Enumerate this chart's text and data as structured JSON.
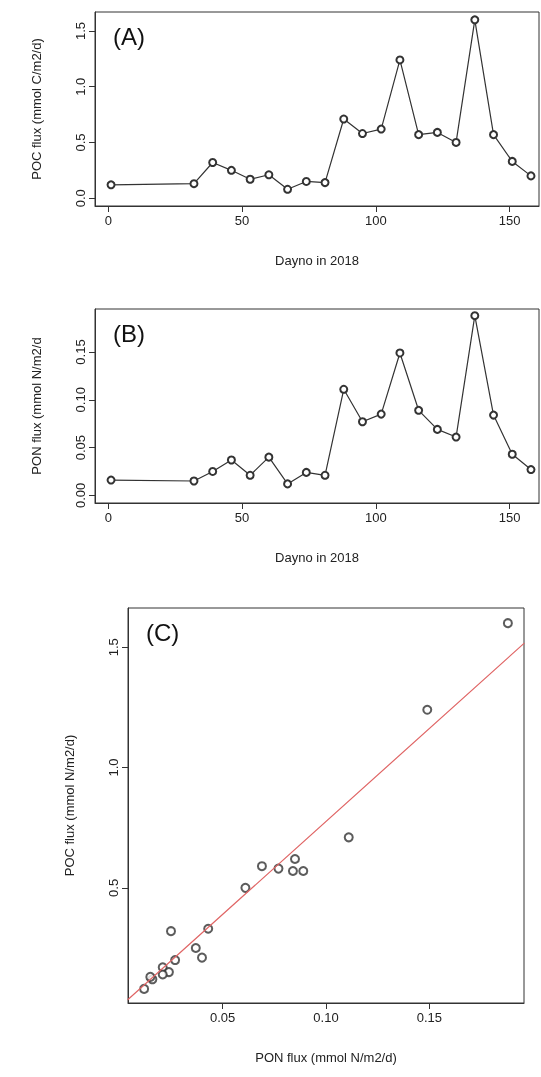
{
  "chart_data": [
    {
      "type": "line",
      "xlabel": "Dayno in 2018",
      "ylabel": "POC flux (mmol C/m2/d)",
      "annotations": [
        "(A)"
      ],
      "marker": "circle",
      "line_style": "solid",
      "grid": false,
      "x": [
        1,
        32,
        39,
        46,
        53,
        60,
        67,
        74,
        81,
        88,
        95,
        102,
        109,
        116,
        123,
        130,
        137,
        144,
        151,
        158
      ],
      "series": [
        {
          "color": "#333333",
          "values": [
            0.12,
            0.13,
            0.32,
            0.25,
            0.17,
            0.21,
            0.08,
            0.15,
            0.14,
            0.71,
            0.58,
            0.62,
            1.24,
            0.57,
            0.59,
            0.5,
            1.6,
            0.57,
            0.33,
            0.2
          ]
        }
      ],
      "xlim": [
        -5,
        161
      ],
      "xticks": [
        0,
        50,
        100,
        150
      ],
      "ylim": [
        -0.07,
        1.67
      ],
      "yticks": [
        {
          "value": 0,
          "label": "0.0"
        },
        0.5,
        {
          "value": 1,
          "label": "1.0"
        },
        1.5
      ]
    },
    {
      "type": "line",
      "xlabel": "Dayno in 2018",
      "ylabel": "PON flux (mmol N/m2/d",
      "annotations": [
        "(B)"
      ],
      "marker": "circle",
      "line_style": "solid",
      "grid": false,
      "x": [
        1,
        32,
        39,
        46,
        53,
        60,
        67,
        74,
        81,
        88,
        95,
        102,
        109,
        116,
        123,
        130,
        137,
        144,
        151,
        158
      ],
      "series": [
        {
          "color": "#333333",
          "values": [
            0.016,
            0.015,
            0.025,
            0.037,
            0.021,
            0.04,
            0.012,
            0.024,
            0.021,
            0.111,
            0.077,
            0.085,
            0.149,
            0.089,
            0.069,
            0.061,
            0.188,
            0.084,
            0.043,
            0.027
          ]
        }
      ],
      "xlim": [
        -5,
        161
      ],
      "xticks": [
        0,
        50,
        100,
        150
      ],
      "ylim": [
        -0.008,
        0.195
      ],
      "yticks": [
        {
          "value": 0,
          "label": "0.00"
        },
        0.05,
        {
          "value": 0.1,
          "label": "0.10"
        },
        0.15
      ]
    },
    {
      "type": "scatter",
      "xlabel": "PON flux (mmol N/m2/d)",
      "ylabel": "POC flux (mmol N/m2/d)",
      "annotations": [
        "(C)"
      ],
      "marker": "circle",
      "grid": false,
      "series": [
        {
          "color": "#333333",
          "x": [
            0.016,
            0.015,
            0.025,
            0.037,
            0.021,
            0.04,
            0.012,
            0.024,
            0.021,
            0.111,
            0.077,
            0.085,
            0.149,
            0.089,
            0.069,
            0.061,
            0.188,
            0.084,
            0.043,
            0.027
          ],
          "values": [
            0.12,
            0.13,
            0.32,
            0.25,
            0.17,
            0.21,
            0.08,
            0.15,
            0.14,
            0.71,
            0.58,
            0.62,
            1.24,
            0.57,
            0.59,
            0.5,
            1.6,
            0.57,
            0.33,
            0.2
          ]
        },
        {
          "type": "line",
          "marker": "none",
          "color": "#e06666",
          "x": [
            0.0042,
            0.1958
          ],
          "values": [
            0.036,
            1.516
          ]
        }
      ],
      "xlim": [
        0.0042,
        0.1958
      ],
      "xticks": [
        0.05,
        {
          "value": 0.1,
          "label": "0.10"
        },
        0.15
      ],
      "ylim": [
        0.0215,
        1.663
      ],
      "yticks": [
        0.5,
        {
          "value": 1,
          "label": "1.0"
        },
        1.5
      ]
    }
  ]
}
